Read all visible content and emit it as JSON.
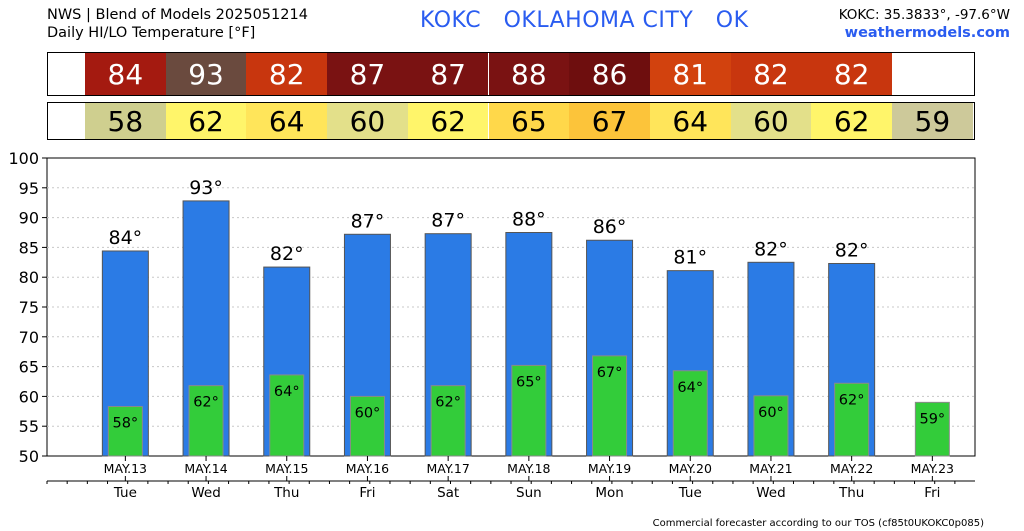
{
  "header": {
    "source_line": "NWS | Blend of Models 2025051214",
    "product_line": "Daily HI/LO Temperature [°F]",
    "station_title": "KOKC   OKLAHOMA CITY   OK",
    "coords": "KOKC: 35.3833°, -97.6°W",
    "website": "weathermodels.com"
  },
  "footer": {
    "text": "Commercial forecaster according to our TOS (cf85t0UKOKC0p085)"
  },
  "hi_row": [
    {
      "value": "84",
      "color": "#a41a10"
    },
    {
      "value": "93",
      "color": "#6a4a3e"
    },
    {
      "value": "82",
      "color": "#c8360e"
    },
    {
      "value": "87",
      "color": "#7a1212"
    },
    {
      "value": "87",
      "color": "#7a1212"
    },
    {
      "value": "88",
      "color": "#7a1212"
    },
    {
      "value": "86",
      "color": "#6e0e0e"
    },
    {
      "value": "81",
      "color": "#d2420e"
    },
    {
      "value": "82",
      "color": "#c8360e"
    },
    {
      "value": "82",
      "color": "#c8360e"
    }
  ],
  "lo_row": [
    {
      "value": "58",
      "color": "#cfcf8f"
    },
    {
      "value": "62",
      "color": "#fff56a"
    },
    {
      "value": "64",
      "color": "#ffe55a"
    },
    {
      "value": "60",
      "color": "#e3e08a"
    },
    {
      "value": "62",
      "color": "#fff56a"
    },
    {
      "value": "65",
      "color": "#ffd84a"
    },
    {
      "value": "67",
      "color": "#fcc43a"
    },
    {
      "value": "64",
      "color": "#ffe55a"
    },
    {
      "value": "60",
      "color": "#e3e08a"
    },
    {
      "value": "62",
      "color": "#fff56a"
    },
    {
      "value": "59",
      "color": "#cdc99a"
    }
  ],
  "chart_data": {
    "type": "bar",
    "ylim": [
      50,
      100
    ],
    "yticks": [
      50,
      55,
      60,
      65,
      70,
      75,
      80,
      85,
      90,
      95,
      100
    ],
    "grid": true,
    "categories": [
      "MAY.13",
      "MAY.14",
      "MAY.15",
      "MAY.16",
      "MAY.17",
      "MAY.18",
      "MAY.19",
      "MAY.20",
      "MAY.21",
      "MAY.22",
      "MAY.23"
    ],
    "days": [
      "Tue",
      "Wed",
      "Thu",
      "Fri",
      "Sat",
      "Sun",
      "Mon",
      "Tue",
      "Wed",
      "Thu",
      "Fri"
    ],
    "series": [
      {
        "values": [
          84.4,
          92.8,
          81.7,
          87.2,
          87.3,
          87.5,
          86.2,
          81.1,
          82.5,
          82.3,
          null
        ],
        "labels": [
          "84°",
          "93°",
          "82°",
          "87°",
          "87°",
          "88°",
          "86°",
          "81°",
          "82°",
          "82°",
          ""
        ],
        "color": "#2b7be5"
      },
      {
        "values": [
          58.3,
          61.8,
          63.6,
          60.0,
          61.8,
          65.2,
          66.8,
          64.3,
          60.1,
          62.2,
          59.0
        ],
        "labels": [
          "58°",
          "62°",
          "64°",
          "60°",
          "62°",
          "65°",
          "67°",
          "64°",
          "60°",
          "62°",
          "59°"
        ],
        "color": "#33cc3a"
      }
    ]
  }
}
